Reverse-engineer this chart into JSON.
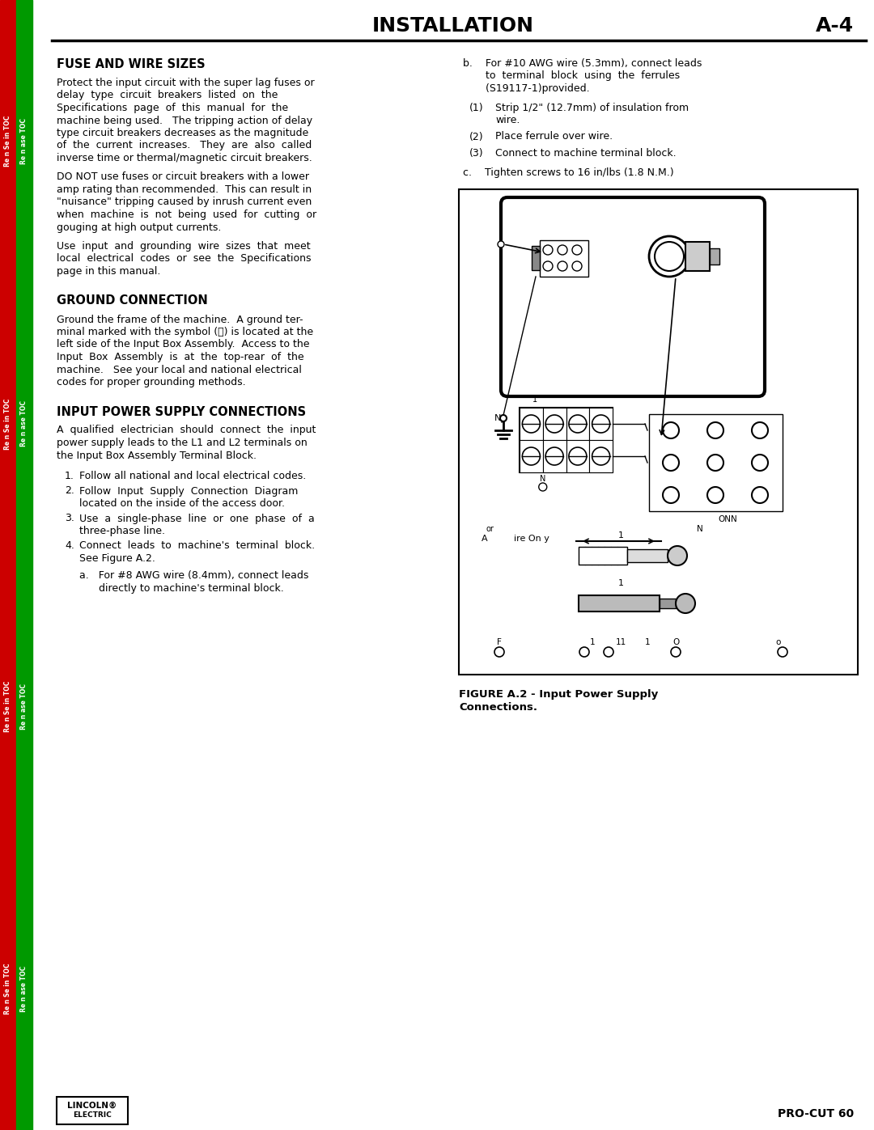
{
  "page_title": "INSTALLATION",
  "page_number": "A-4",
  "product_name": "PRO-CUT 60",
  "background_color": "#ffffff",
  "left_sidebar_red": "#cc0000",
  "left_sidebar_green": "#009900",
  "section1_title": "FUSE AND WIRE SIZES",
  "section2_title": "GROUND CONNECTION",
  "section3_title": "INPUT POWER SUPPLY CONNECTIONS",
  "figure_caption_bold": "FIGURE A.2 - Input Power Supply",
  "figure_caption_bold2": "Connections.",
  "sidebar_red_text": "Re n Se in TOC",
  "sidebar_green_text": "Re n ase TOC"
}
